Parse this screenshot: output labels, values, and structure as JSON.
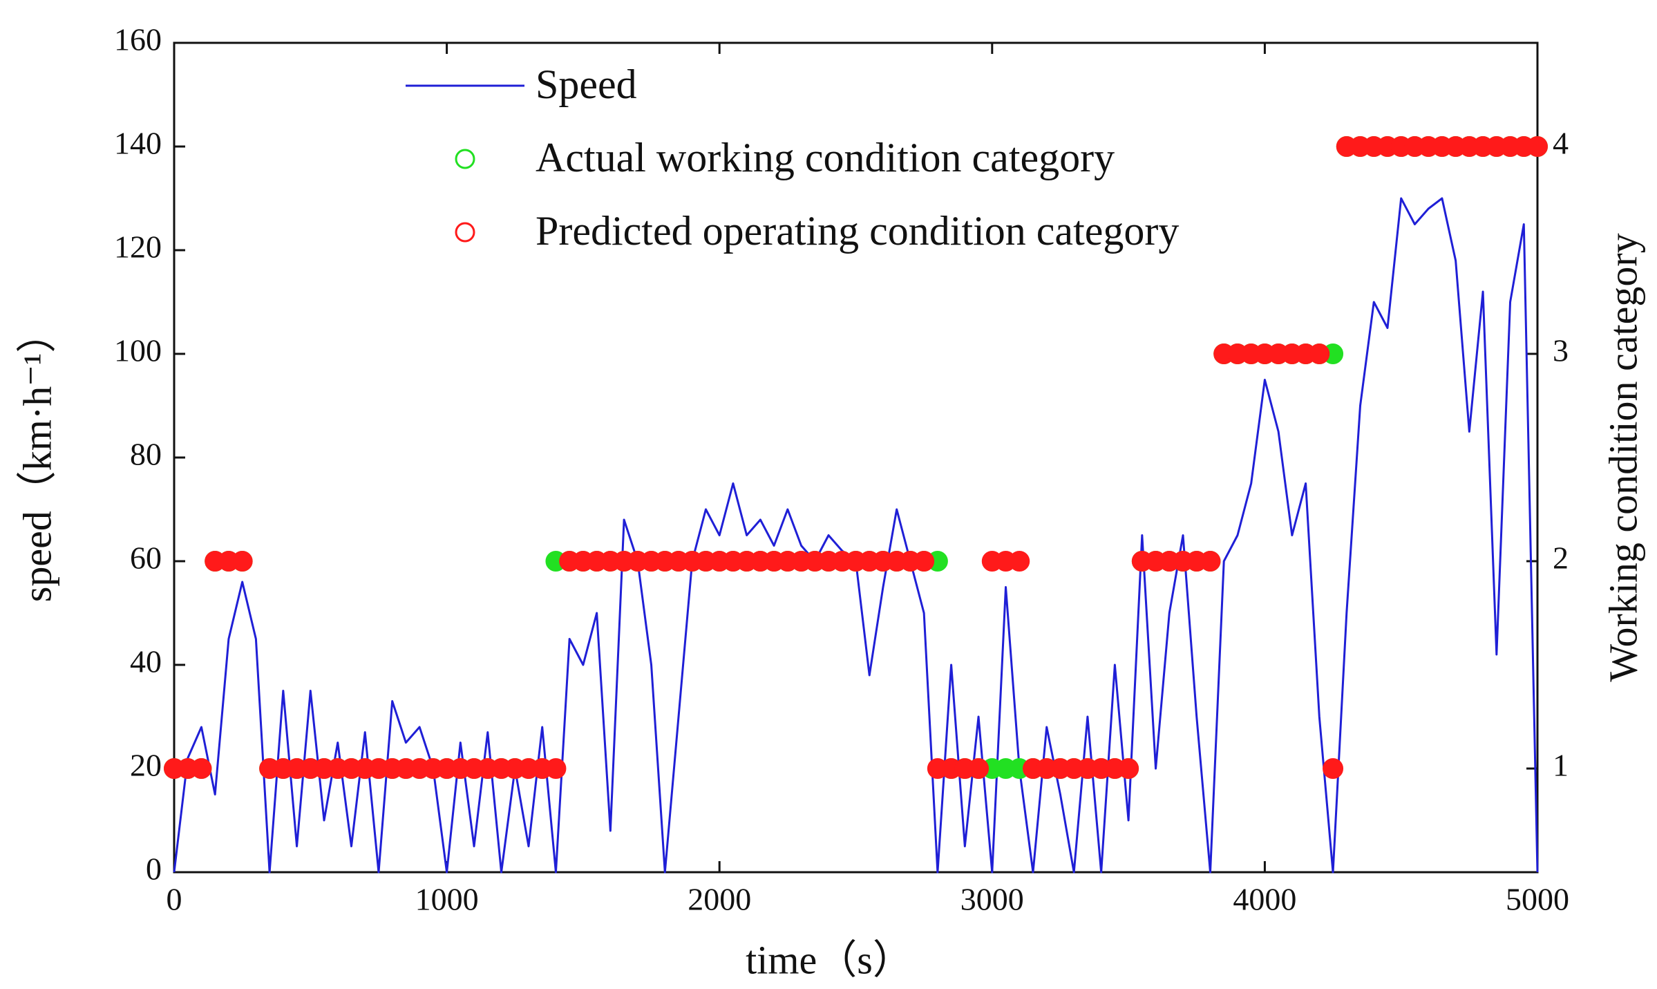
{
  "chart_data": {
    "type": "line",
    "xlabel": "time（s）",
    "ylabel": "speed（km·h⁻¹）",
    "y2label": "Working condition category",
    "xlim": [
      0,
      5000
    ],
    "xticks": [
      0,
      1000,
      2000,
      3000,
      4000,
      5000
    ],
    "ylim": [
      0,
      160
    ],
    "yticks": [
      0,
      20,
      40,
      60,
      80,
      100,
      120,
      140,
      160
    ],
    "y2lim": [
      0.5,
      4.5
    ],
    "y2ticks": [
      1,
      2,
      3,
      4
    ],
    "legend": "upper left",
    "x": [
      0,
      50,
      100,
      150,
      200,
      250,
      300,
      350,
      400,
      450,
      500,
      550,
      600,
      650,
      700,
      750,
      800,
      850,
      900,
      950,
      1000,
      1050,
      1100,
      1150,
      1200,
      1250,
      1300,
      1350,
      1400,
      1450,
      1500,
      1550,
      1600,
      1650,
      1700,
      1750,
      1800,
      1850,
      1900,
      1950,
      2000,
      2050,
      2100,
      2150,
      2200,
      2250,
      2300,
      2350,
      2400,
      2450,
      2500,
      2550,
      2600,
      2650,
      2700,
      2750,
      2800,
      2850,
      2900,
      2950,
      3000,
      3050,
      3100,
      3150,
      3200,
      3250,
      3300,
      3350,
      3400,
      3450,
      3500,
      3550,
      3600,
      3650,
      3700,
      3750,
      3800,
      3850,
      3900,
      3950,
      4000,
      4050,
      4100,
      4150,
      4200,
      4250,
      4300,
      4350,
      4400,
      4450,
      4500,
      4550,
      4600,
      4650,
      4700,
      4750,
      4800,
      4850,
      4900,
      4950,
      5000
    ],
    "series": [
      {
        "name": "Speed",
        "color": "#1f1fd6",
        "kind": "line",
        "values": [
          0,
          22,
          28,
          15,
          45,
          56,
          45,
          0,
          35,
          5,
          35,
          10,
          25,
          5,
          27,
          0,
          33,
          25,
          28,
          20,
          0,
          25,
          5,
          27,
          0,
          20,
          5,
          28,
          0,
          45,
          40,
          50,
          8,
          68,
          60,
          40,
          0,
          30,
          60,
          70,
          65,
          75,
          65,
          68,
          63,
          70,
          63,
          60,
          65,
          62,
          60,
          38,
          55,
          70,
          60,
          50,
          0,
          40,
          5,
          30,
          0,
          55,
          20,
          0,
          28,
          15,
          0,
          30,
          0,
          40,
          10,
          65,
          20,
          50,
          65,
          30,
          0,
          60,
          65,
          75,
          95,
          85,
          65,
          75,
          30,
          0,
          50,
          90,
          110,
          105,
          130,
          125,
          128,
          130,
          118,
          85,
          112,
          42,
          110,
          125,
          0
        ]
      },
      {
        "name": "Actual working condition category",
        "color": "#22e022",
        "kind": "scatter",
        "axis": "y2",
        "values": [
          1,
          1,
          1,
          2,
          2,
          2,
          null,
          1,
          1,
          1,
          1,
          1,
          1,
          1,
          1,
          1,
          1,
          1,
          1,
          1,
          1,
          1,
          1,
          1,
          1,
          1,
          1,
          1,
          2,
          2,
          2,
          2,
          2,
          2,
          2,
          2,
          2,
          2,
          2,
          2,
          2,
          2,
          2,
          2,
          2,
          2,
          2,
          2,
          2,
          2,
          2,
          2,
          2,
          2,
          2,
          2,
          2,
          1,
          1,
          1,
          1,
          1,
          1,
          1,
          1,
          1,
          1,
          1,
          1,
          1,
          1,
          2,
          2,
          2,
          2,
          2,
          2,
          3,
          3,
          3,
          3,
          3,
          3,
          3,
          3,
          3,
          4,
          4,
          4,
          4,
          4,
          4,
          4,
          4,
          4,
          4,
          4,
          4,
          4,
          4,
          4
        ]
      },
      {
        "name": "Predicted operating condition category",
        "color": "#ff1a1a",
        "kind": "scatter",
        "axis": "y2",
        "values": [
          1,
          1,
          1,
          2,
          2,
          2,
          null,
          1,
          1,
          1,
          1,
          1,
          1,
          1,
          1,
          1,
          1,
          1,
          1,
          1,
          1,
          1,
          1,
          1,
          1,
          1,
          1,
          1,
          1,
          2,
          2,
          2,
          2,
          2,
          2,
          2,
          2,
          2,
          2,
          2,
          2,
          2,
          2,
          2,
          2,
          2,
          2,
          2,
          2,
          2,
          2,
          2,
          2,
          2,
          2,
          2,
          1,
          1,
          1,
          1,
          2,
          2,
          2,
          1,
          1,
          1,
          1,
          1,
          1,
          1,
          1,
          2,
          2,
          2,
          2,
          2,
          2,
          3,
          3,
          3,
          3,
          3,
          3,
          3,
          3,
          1,
          4,
          4,
          4,
          4,
          4,
          4,
          4,
          4,
          4,
          4,
          4,
          4,
          4,
          4,
          4
        ]
      }
    ]
  }
}
